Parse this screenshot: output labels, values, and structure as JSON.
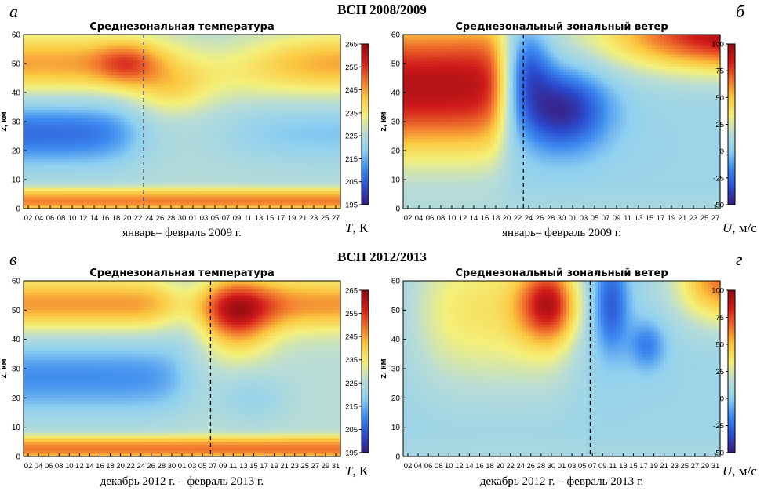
{
  "titles": {
    "top": "ВСП 2008/2009",
    "bottom": "ВСП 2012/2013"
  },
  "panel_letters": [
    "а",
    "б",
    "в",
    "г"
  ],
  "colormap": [
    "#3a1a7a",
    "#2a4bd0",
    "#3d8bf0",
    "#8fd0f0",
    "#b9ddd6",
    "#f4f07a",
    "#fbc840",
    "#f0702c",
    "#d01a1a",
    "#8c0a10"
  ],
  "chart_data": [
    {
      "type": "heatmap",
      "id": "a",
      "title": "Среднезональная температура",
      "ylabel": "z, км",
      "xlabel": "январь– февраль 2009 г.",
      "ylim": [
        0,
        60
      ],
      "yticks": [
        0,
        10,
        20,
        30,
        40,
        50,
        60
      ],
      "xticks": [
        "02",
        "04",
        "06",
        "08",
        "10",
        "12",
        "14",
        "16",
        "18",
        "20",
        "22",
        "24",
        "26",
        "28",
        "30",
        "01",
        "03",
        "05",
        "07",
        "09",
        "11",
        "13",
        "15",
        "17",
        "19",
        "21",
        "23",
        "25",
        "27"
      ],
      "colorbar": {
        "label": "T, К",
        "ticks": [
          195,
          205,
          215,
          225,
          235,
          245,
          255,
          265
        ],
        "min": 195,
        "max": 265
      },
      "dashed_line_at": "23",
      "day_range": [
        1,
        59
      ],
      "event_day": 23,
      "variable": "T"
    },
    {
      "type": "heatmap",
      "id": "b",
      "title": "Среднезональный зональный ветер",
      "ylabel": "z, км",
      "xlabel": "январь– февраль 2009 г.",
      "ylim": [
        0,
        60
      ],
      "yticks": [
        0,
        10,
        20,
        30,
        40,
        50,
        60
      ],
      "xticks": [
        "02",
        "04",
        "06",
        "08",
        "10",
        "12",
        "14",
        "16",
        "18",
        "20",
        "22",
        "24",
        "26",
        "28",
        "30",
        "01",
        "03",
        "05",
        "07",
        "09",
        "11",
        "13",
        "15",
        "17",
        "19",
        "21",
        "23",
        "25",
        "27"
      ],
      "colorbar": {
        "label": "U, м/с",
        "ticks": [
          -50,
          -25,
          0,
          25,
          50,
          75,
          100
        ],
        "min": -50,
        "max": 100
      },
      "dashed_line_at": "23",
      "day_range": [
        1,
        59
      ],
      "event_day": 23,
      "variable": "U"
    },
    {
      "type": "heatmap",
      "id": "c",
      "title": "Среднезональная температура",
      "ylabel": "z, км",
      "xlabel": "декабрь 2012 г. – февраль 2013 г.",
      "ylim": [
        0,
        60
      ],
      "yticks": [
        0,
        10,
        20,
        30,
        40,
        50,
        60
      ],
      "xticks": [
        "02",
        "04",
        "06",
        "08",
        "10",
        "12",
        "14",
        "16",
        "18",
        "20",
        "22",
        "24",
        "26",
        "28",
        "30",
        "01",
        "03",
        "05",
        "07",
        "09",
        "11",
        "13",
        "15",
        "17",
        "19",
        "21",
        "23",
        "25",
        "27",
        "29",
        "31"
      ],
      "colorbar": {
        "label": "T, К",
        "ticks": [
          195,
          205,
          215,
          225,
          235,
          245,
          255,
          265
        ],
        "min": 195,
        "max": 265
      },
      "dashed_line_at": "06",
      "day_range": [
        1,
        62
      ],
      "event_day": 37,
      "variable": "T"
    },
    {
      "type": "heatmap",
      "id": "d",
      "title": "Среднезональный зональный ветер",
      "ylabel": "z, км",
      "xlabel": "декабрь 2012 г. – февраль 2013 г.",
      "ylim": [
        0,
        60
      ],
      "yticks": [
        0,
        10,
        20,
        30,
        40,
        50,
        60
      ],
      "xticks": [
        "02",
        "04",
        "06",
        "08",
        "10",
        "12",
        "14",
        "16",
        "18",
        "20",
        "22",
        "24",
        "26",
        "28",
        "30",
        "01",
        "03",
        "05",
        "07",
        "09",
        "11",
        "13",
        "15",
        "17",
        "19",
        "21",
        "23",
        "25",
        "27",
        "29",
        "31"
      ],
      "colorbar": {
        "label": "U, м/с",
        "ticks": [
          -50,
          -25,
          0,
          25,
          50,
          75,
          100
        ],
        "min": -50,
        "max": 100
      },
      "dashed_line_at": "06",
      "day_range": [
        1,
        62
      ],
      "event_day": 37,
      "variable": "U"
    }
  ]
}
